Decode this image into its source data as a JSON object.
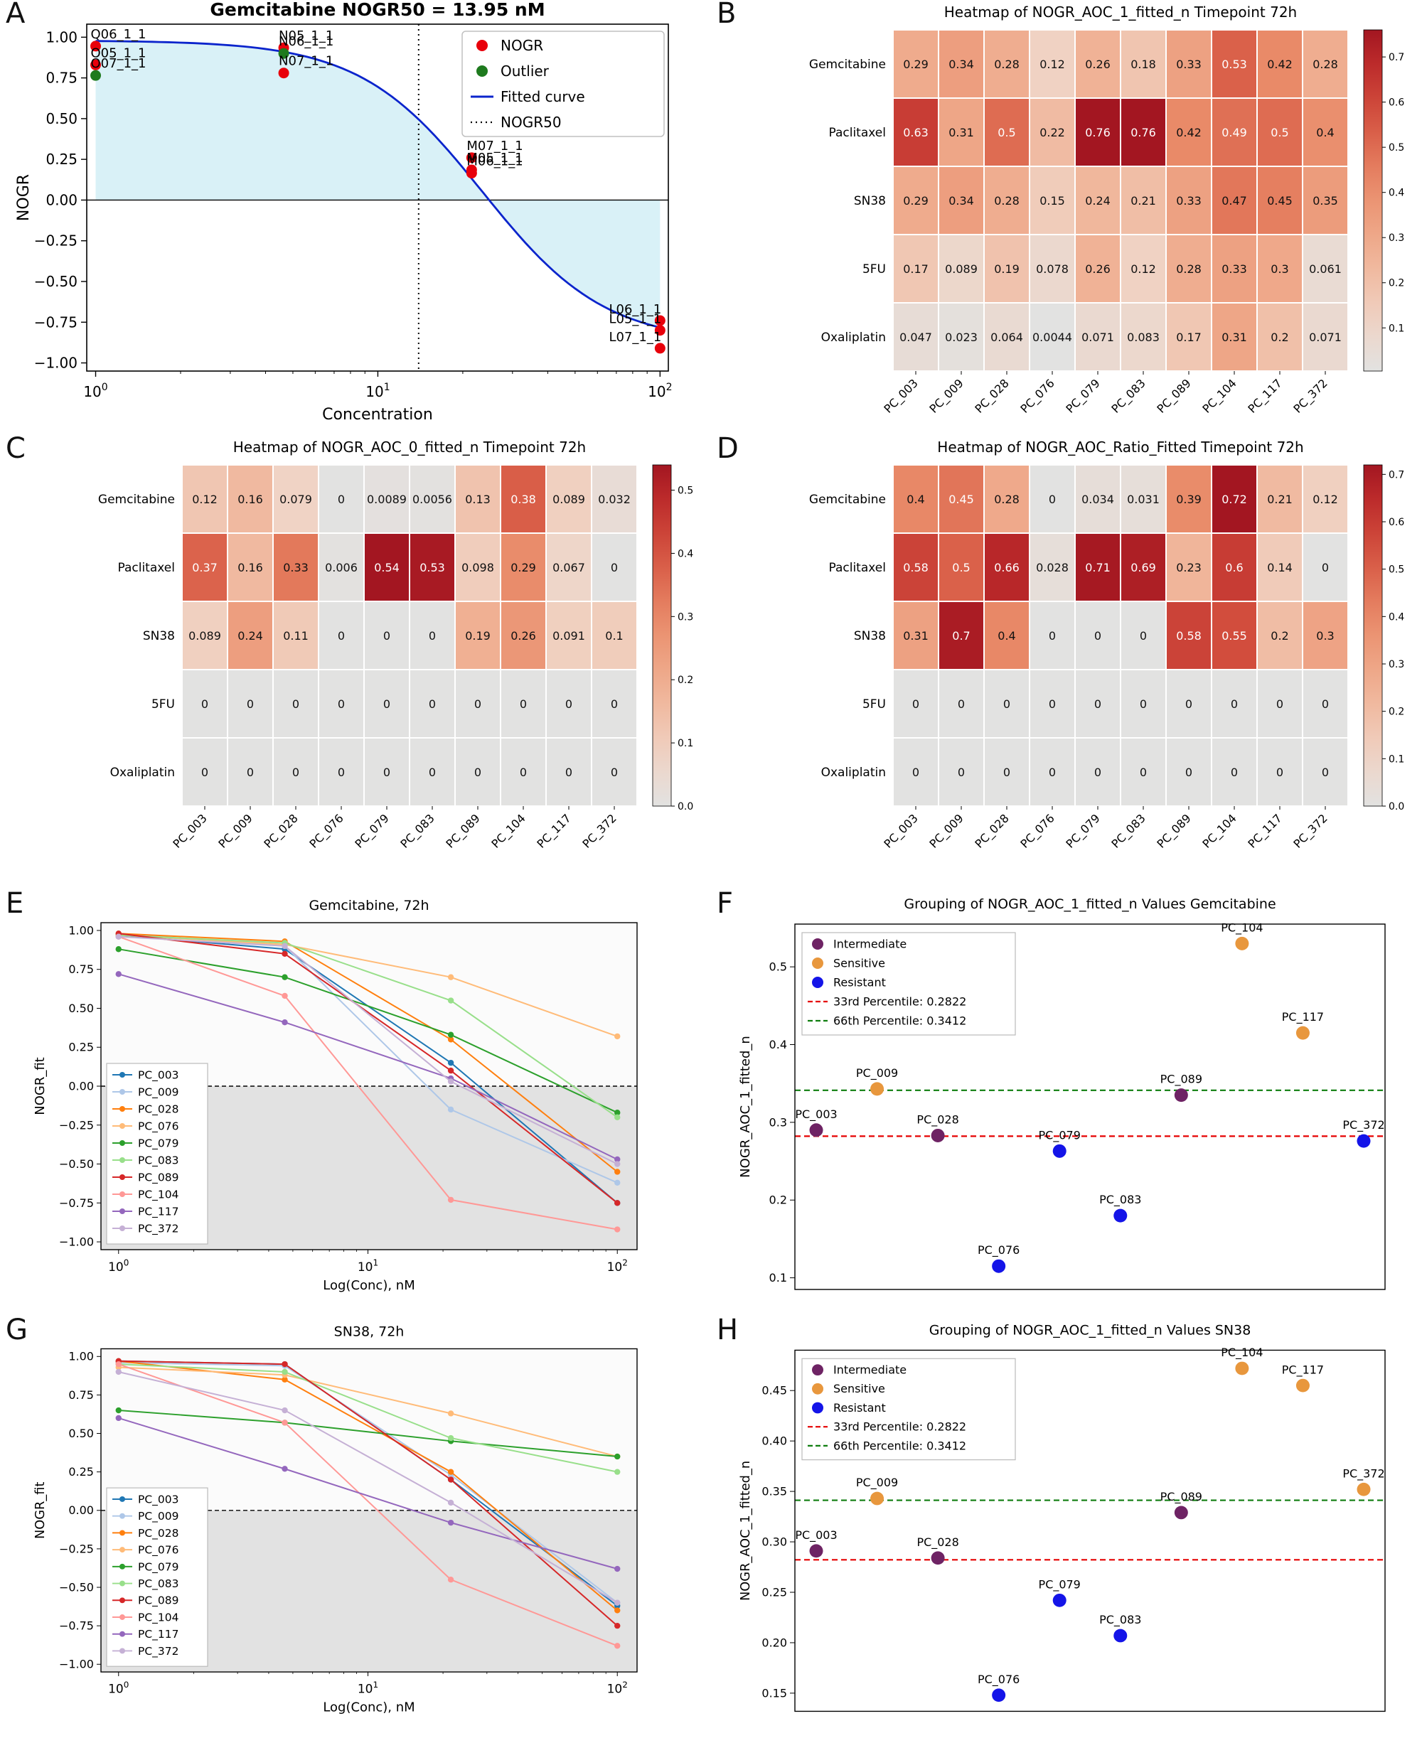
{
  "panels": [
    {
      "letter": "A"
    },
    {
      "letter": "B"
    },
    {
      "letter": "C"
    },
    {
      "letter": "D"
    },
    {
      "letter": "E"
    },
    {
      "letter": "F"
    },
    {
      "letter": "G"
    },
    {
      "letter": "H"
    }
  ],
  "colors": {
    "nogr_point": "#e8000b",
    "outlier_point": "#1e7a1e",
    "fitted_curve": "#0b24cc",
    "aoc_fill": "#d9f1f7",
    "heatmap_stops": [
      [
        0,
        "#e2e2e1"
      ],
      [
        0.15,
        "#f0d3c4"
      ],
      [
        0.35,
        "#f0b093"
      ],
      [
        0.55,
        "#e98a68"
      ],
      [
        0.75,
        "#d4513f"
      ],
      [
        0.9,
        "#bc2b2b"
      ],
      [
        1,
        "#a31621"
      ]
    ],
    "series": {
      "PC_003": "#1f77b4",
      "PC_009": "#aec7e8",
      "PC_028": "#ff7f0e",
      "PC_076": "#ffbb78",
      "PC_079": "#2ca02c",
      "PC_083": "#98df8a",
      "PC_089": "#d62728",
      "PC_104": "#ff9896",
      "PC_117": "#9467bd",
      "PC_372": "#c5b0d5"
    },
    "groups": {
      "Intermediate": "#6e2364",
      "Sensitive": "#e8973d",
      "Resistant": "#1414e8"
    },
    "percentile33": "#e50000",
    "percentile66": "#0f7d0f"
  },
  "chart_data": [
    {
      "id": "A",
      "type": "dose_response",
      "title": "Gemcitabine NOGR50 = 13.95 nM",
      "xlabel": "Concentration",
      "ylabel": "NOGR",
      "xscale": "log",
      "xlim": [
        0.93,
        107
      ],
      "ylim": [
        -1.05,
        1.08
      ],
      "yticks": [
        1.0,
        0.75,
        0.5,
        0.25,
        0.0,
        -0.25,
        -0.5,
        -0.75,
        -1.0
      ],
      "xtick_exponents": [
        0,
        1,
        2
      ],
      "nogr50": 13.95,
      "curve": {
        "top": 0.98,
        "bottom": -0.88,
        "hill": 2.0,
        "ec50": 23.5
      },
      "points": [
        {
          "label": "Q06_1_1",
          "x": 1,
          "y": 0.945,
          "group": "NOGR"
        },
        {
          "label": "O05_1_1",
          "x": 1,
          "y": 0.83,
          "group": "NOGR"
        },
        {
          "label": "O07_1_1",
          "x": 1,
          "y": 0.765,
          "group": "Outlier"
        },
        {
          "label": "N05_1_1",
          "x": 4.64,
          "y": 0.935,
          "group": "NOGR"
        },
        {
          "label": "N06_1_1",
          "x": 4.64,
          "y": 0.9,
          "group": "Outlier"
        },
        {
          "label": "N07_1_1",
          "x": 4.64,
          "y": 0.78,
          "group": "NOGR"
        },
        {
          "label": "M07_1_1",
          "x": 21.5,
          "y": 0.26,
          "group": "NOGR"
        },
        {
          "label": "M05_1_1",
          "x": 21.5,
          "y": 0.185,
          "group": "NOGR"
        },
        {
          "label": "M06_1_1",
          "x": 21.5,
          "y": 0.165,
          "group": "NOGR"
        },
        {
          "label": "L06_1_1",
          "x": 100,
          "y": -0.74,
          "group": "NOGR"
        },
        {
          "label": "L05_1_1",
          "x": 100,
          "y": -0.8,
          "group": "NOGR"
        },
        {
          "label": "L07_1_1",
          "x": 100,
          "y": -0.91,
          "group": "NOGR"
        }
      ],
      "legend": [
        "NOGR",
        "Outlier",
        "Fitted curve",
        "NOGR50"
      ]
    },
    {
      "id": "B",
      "type": "heatmap",
      "title": "Heatmap of NOGR_AOC_1_fitted_n Timepoint 72h",
      "rows": [
        "Gemcitabine",
        "Paclitaxel",
        "SN38",
        "5FU",
        "Oxaliplatin"
      ],
      "cols": [
        "PC_003",
        "PC_009",
        "PC_028",
        "PC_076",
        "PC_079",
        "PC_083",
        "PC_089",
        "PC_104",
        "PC_117",
        "PC_372"
      ],
      "values": [
        [
          0.29,
          0.34,
          0.28,
          0.12,
          0.26,
          0.18,
          0.33,
          0.53,
          0.42,
          0.28
        ],
        [
          0.63,
          0.31,
          0.5,
          0.22,
          0.76,
          0.76,
          0.42,
          0.49,
          0.5,
          0.4
        ],
        [
          0.29,
          0.34,
          0.28,
          0.15,
          0.24,
          0.21,
          0.33,
          0.47,
          0.45,
          0.35
        ],
        [
          0.17,
          0.089,
          0.19,
          0.078,
          0.26,
          0.12,
          0.28,
          0.33,
          0.3,
          0.061
        ],
        [
          0.047,
          0.023,
          0.064,
          0.0044,
          0.071,
          0.083,
          0.17,
          0.31,
          0.2,
          0.071
        ]
      ],
      "vmin": 0.0044,
      "vmax": 0.76,
      "colorbar_ticks": [
        0.1,
        0.2,
        0.3,
        0.4,
        0.5,
        0.6,
        0.7
      ]
    },
    {
      "id": "C",
      "type": "heatmap",
      "title": "Heatmap of NOGR_AOC_0_fitted_n Timepoint 72h",
      "rows": [
        "Gemcitabine",
        "Paclitaxel",
        "SN38",
        "5FU",
        "Oxaliplatin"
      ],
      "cols": [
        "PC_003",
        "PC_009",
        "PC_028",
        "PC_076",
        "PC_079",
        "PC_083",
        "PC_089",
        "PC_104",
        "PC_117",
        "PC_372"
      ],
      "values": [
        [
          0.12,
          0.16,
          0.079,
          0,
          0.0089,
          0.0056,
          0.13,
          0.38,
          0.089,
          0.032
        ],
        [
          0.37,
          0.16,
          0.33,
          0.006,
          0.54,
          0.53,
          0.098,
          0.29,
          0.067,
          0
        ],
        [
          0.089,
          0.24,
          0.11,
          0,
          0,
          0,
          0.19,
          0.26,
          0.091,
          0.1
        ],
        [
          0,
          0,
          0,
          0,
          0,
          0,
          0,
          0,
          0,
          0
        ],
        [
          0,
          0,
          0,
          0,
          0,
          0,
          0,
          0,
          0,
          0
        ]
      ],
      "vmin": 0,
      "vmax": 0.54,
      "colorbar_ticks": [
        0.0,
        0.1,
        0.2,
        0.3,
        0.4,
        0.5
      ]
    },
    {
      "id": "D",
      "type": "heatmap",
      "title": "Heatmap of NOGR_AOC_Ratio_Fitted Timepoint 72h",
      "rows": [
        "Gemcitabine",
        "Paclitaxel",
        "SN38",
        "5FU",
        "Oxaliplatin"
      ],
      "cols": [
        "PC_003",
        "PC_009",
        "PC_028",
        "PC_076",
        "PC_079",
        "PC_083",
        "PC_089",
        "PC_104",
        "PC_117",
        "PC_372"
      ],
      "values": [
        [
          0.4,
          0.45,
          0.28,
          0,
          0.034,
          0.031,
          0.39,
          0.72,
          0.21,
          0.12
        ],
        [
          0.58,
          0.5,
          0.66,
          0.028,
          0.71,
          0.69,
          0.23,
          0.6,
          0.14,
          0
        ],
        [
          0.31,
          0.7,
          0.4,
          0,
          0,
          0,
          0.58,
          0.55,
          0.2,
          0.3
        ],
        [
          0,
          0,
          0,
          0,
          0,
          0,
          0,
          0,
          0,
          0
        ],
        [
          0,
          0,
          0,
          0,
          0,
          0,
          0,
          0,
          0,
          0
        ]
      ],
      "vmin": 0,
      "vmax": 0.72,
      "colorbar_ticks": [
        0.0,
        0.1,
        0.2,
        0.3,
        0.4,
        0.5,
        0.6,
        0.7
      ]
    },
    {
      "id": "E",
      "type": "line",
      "title": "Gemcitabine, 72h",
      "xlabel": "Log(Conc), nM",
      "ylabel": "NOGR_fit",
      "x": [
        1,
        4.64,
        21.5,
        100
      ],
      "yticks": [
        1.0,
        0.75,
        0.5,
        0.25,
        0.0,
        -0.25,
        -0.5,
        -0.75,
        -1.0
      ],
      "series": [
        {
          "name": "PC_003",
          "values": [
            0.97,
            0.88,
            0.15,
            -0.75
          ]
        },
        {
          "name": "PC_009",
          "values": [
            0.98,
            0.9,
            -0.15,
            -0.62
          ]
        },
        {
          "name": "PC_028",
          "values": [
            0.98,
            0.93,
            0.3,
            -0.55
          ]
        },
        {
          "name": "PC_076",
          "values": [
            0.97,
            0.91,
            0.7,
            0.32
          ]
        },
        {
          "name": "PC_079",
          "values": [
            0.88,
            0.7,
            0.33,
            -0.17
          ]
        },
        {
          "name": "PC_083",
          "values": [
            0.97,
            0.92,
            0.55,
            -0.2
          ]
        },
        {
          "name": "PC_089",
          "values": [
            0.98,
            0.85,
            0.1,
            -0.75
          ]
        },
        {
          "name": "PC_104",
          "values": [
            0.96,
            0.58,
            -0.73,
            -0.92
          ]
        },
        {
          "name": "PC_117",
          "values": [
            0.72,
            0.41,
            0.05,
            -0.47
          ]
        },
        {
          "name": "PC_372",
          "values": [
            0.96,
            0.9,
            0.03,
            -0.5
          ]
        }
      ]
    },
    {
      "id": "F",
      "type": "grouping",
      "title": "Grouping of NOGR_AOC_1_fitted_n Values Gemcitabine",
      "ylabel": "NOGR_AOC_1_fitted_n",
      "ylim": [
        0.085,
        0.555
      ],
      "yticks": [
        0.1,
        0.2,
        0.3,
        0.4,
        0.5
      ],
      "tick_decimals": 1,
      "points": [
        {
          "name": "PC_003",
          "y": 0.29,
          "group": "Intermediate"
        },
        {
          "name": "PC_009",
          "y": 0.343,
          "group": "Sensitive"
        },
        {
          "name": "PC_028",
          "y": 0.283,
          "group": "Intermediate"
        },
        {
          "name": "PC_076",
          "y": 0.115,
          "group": "Resistant"
        },
        {
          "name": "PC_079",
          "y": 0.263,
          "group": "Resistant"
        },
        {
          "name": "PC_083",
          "y": 0.18,
          "group": "Resistant"
        },
        {
          "name": "PC_089",
          "y": 0.335,
          "group": "Intermediate"
        },
        {
          "name": "PC_104",
          "y": 0.53,
          "group": "Sensitive"
        },
        {
          "name": "PC_117",
          "y": 0.415,
          "group": "Sensitive"
        },
        {
          "name": "PC_372",
          "y": 0.276,
          "group": "Resistant"
        }
      ],
      "percentile_lines": [
        {
          "label": "33rd Percentile: 0.2822",
          "y": 0.2822,
          "color_key": "percentile33"
        },
        {
          "label": "66th Percentile: 0.3412",
          "y": 0.3412,
          "color_key": "percentile66"
        }
      ],
      "legend_groups": [
        "Intermediate",
        "Sensitive",
        "Resistant"
      ]
    },
    {
      "id": "G",
      "type": "line",
      "title": "SN38, 72h",
      "xlabel": "Log(Conc), nM",
      "ylabel": "NOGR_fit",
      "x": [
        1,
        4.64,
        21.5,
        100
      ],
      "yticks": [
        1.0,
        0.75,
        0.5,
        0.25,
        0.0,
        -0.25,
        -0.5,
        -0.75,
        -1.0
      ],
      "series": [
        {
          "name": "PC_003",
          "values": [
            0.97,
            0.95,
            0.2,
            -0.62
          ]
        },
        {
          "name": "PC_009",
          "values": [
            0.96,
            0.94,
            0.23,
            -0.6
          ]
        },
        {
          "name": "PC_028",
          "values": [
            0.97,
            0.85,
            0.25,
            -0.65
          ]
        },
        {
          "name": "PC_076",
          "values": [
            0.93,
            0.88,
            0.63,
            0.35
          ]
        },
        {
          "name": "PC_079",
          "values": [
            0.65,
            0.57,
            0.45,
            0.35
          ]
        },
        {
          "name": "PC_083",
          "values": [
            0.95,
            0.9,
            0.47,
            0.25
          ]
        },
        {
          "name": "PC_089",
          "values": [
            0.97,
            0.95,
            0.2,
            -0.75
          ]
        },
        {
          "name": "PC_104",
          "values": [
            0.95,
            0.57,
            -0.45,
            -0.88
          ]
        },
        {
          "name": "PC_117",
          "values": [
            0.6,
            0.27,
            -0.08,
            -0.38
          ]
        },
        {
          "name": "PC_372",
          "values": [
            0.9,
            0.65,
            0.05,
            -0.6
          ]
        }
      ]
    },
    {
      "id": "H",
      "type": "grouping",
      "title": "Grouping of NOGR_AOC_1_fitted_n Values SN38",
      "ylabel": "NOGR_AOC_1_fitted_n",
      "ylim": [
        0.132,
        0.49
      ],
      "yticks": [
        0.15,
        0.2,
        0.25,
        0.3,
        0.35,
        0.4,
        0.45
      ],
      "tick_decimals": 2,
      "points": [
        {
          "name": "PC_003",
          "y": 0.291,
          "group": "Intermediate"
        },
        {
          "name": "PC_009",
          "y": 0.343,
          "group": "Sensitive"
        },
        {
          "name": "PC_028",
          "y": 0.284,
          "group": "Intermediate"
        },
        {
          "name": "PC_076",
          "y": 0.148,
          "group": "Resistant"
        },
        {
          "name": "PC_079",
          "y": 0.242,
          "group": "Resistant"
        },
        {
          "name": "PC_083",
          "y": 0.207,
          "group": "Resistant"
        },
        {
          "name": "PC_089",
          "y": 0.329,
          "group": "Intermediate"
        },
        {
          "name": "PC_104",
          "y": 0.472,
          "group": "Sensitive"
        },
        {
          "name": "PC_117",
          "y": 0.455,
          "group": "Sensitive"
        },
        {
          "name": "PC_372",
          "y": 0.352,
          "group": "Sensitive"
        }
      ],
      "percentile_lines": [
        {
          "label": "33rd Percentile: 0.2822",
          "y": 0.2822,
          "color_key": "percentile33"
        },
        {
          "label": "66th Percentile: 0.3412",
          "y": 0.3412,
          "color_key": "percentile66"
        }
      ],
      "legend_groups": [
        "Intermediate",
        "Sensitive",
        "Resistant"
      ]
    }
  ]
}
